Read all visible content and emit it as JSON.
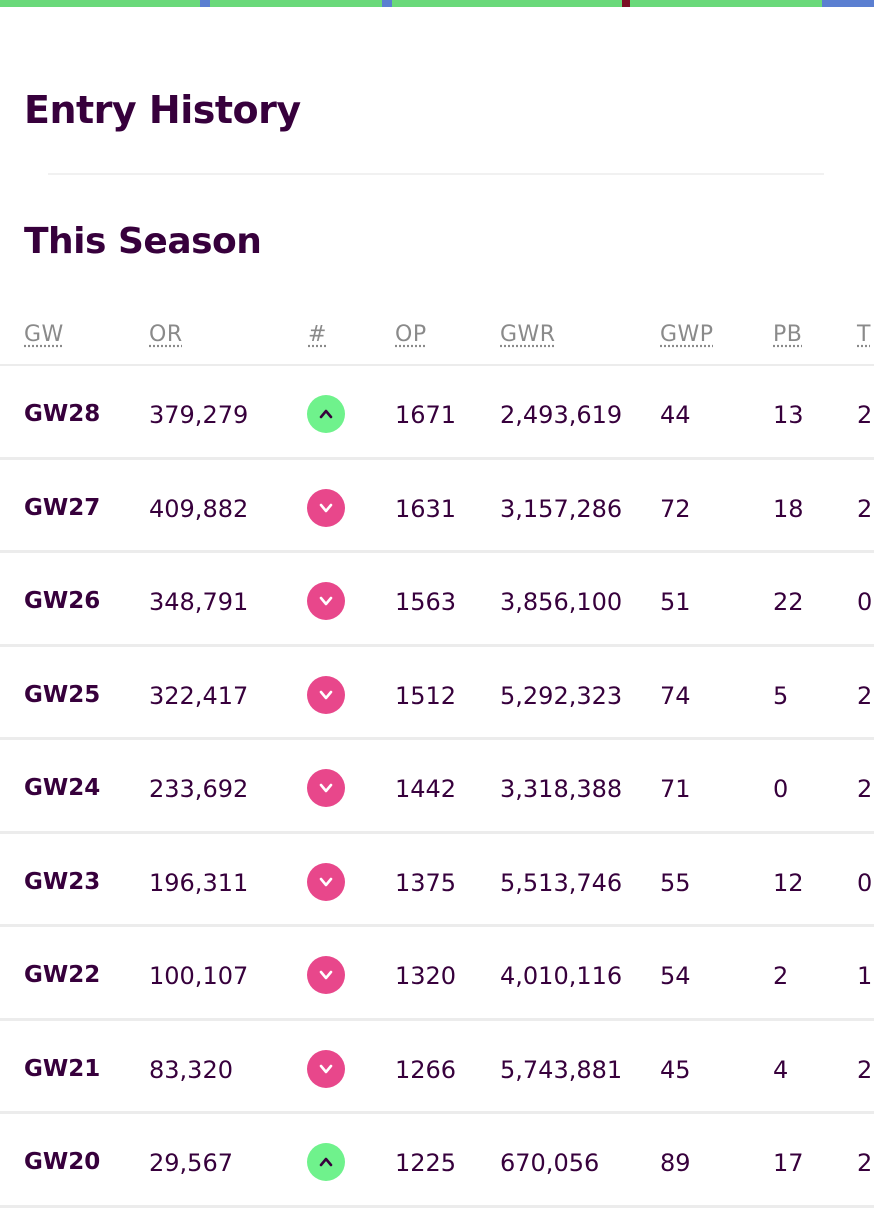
{
  "colors": {
    "primary": "#37003c",
    "rank_up": "#6ff28c",
    "rank_down": "#e8478b",
    "strip_green": "#6ad97a",
    "strip_blue": "#5b7fd1",
    "strip_maroon": "#7a0f24"
  },
  "page": {
    "title": "Entry History"
  },
  "season": {
    "title": "This Season",
    "columns": [
      "GW",
      "OR",
      "#",
      "OP",
      "GWR",
      "GWP",
      "PB",
      "T"
    ],
    "rows": [
      {
        "gw": "GW28",
        "or": "379,279",
        "movement": "up",
        "op": "1671",
        "gwr": "2,493,619",
        "gwp": "44",
        "pb": "13",
        "t": "2"
      },
      {
        "gw": "GW27",
        "or": "409,882",
        "movement": "down",
        "op": "1631",
        "gwr": "3,157,286",
        "gwp": "72",
        "pb": "18",
        "t": "2"
      },
      {
        "gw": "GW26",
        "or": "348,791",
        "movement": "down",
        "op": "1563",
        "gwr": "3,856,100",
        "gwp": "51",
        "pb": "22",
        "t": "0"
      },
      {
        "gw": "GW25",
        "or": "322,417",
        "movement": "down",
        "op": "1512",
        "gwr": "5,292,323",
        "gwp": "74",
        "pb": "5",
        "t": "2"
      },
      {
        "gw": "GW24",
        "or": "233,692",
        "movement": "down",
        "op": "1442",
        "gwr": "3,318,388",
        "gwp": "71",
        "pb": "0",
        "t": "2"
      },
      {
        "gw": "GW23",
        "or": "196,311",
        "movement": "down",
        "op": "1375",
        "gwr": "5,513,746",
        "gwp": "55",
        "pb": "12",
        "t": "0"
      },
      {
        "gw": "GW22",
        "or": "100,107",
        "movement": "down",
        "op": "1320",
        "gwr": "4,010,116",
        "gwp": "54",
        "pb": "2",
        "t": "1"
      },
      {
        "gw": "GW21",
        "or": "83,320",
        "movement": "down",
        "op": "1266",
        "gwr": "5,743,881",
        "gwp": "45",
        "pb": "4",
        "t": "2"
      },
      {
        "gw": "GW20",
        "or": "29,567",
        "movement": "up",
        "op": "1225",
        "gwr": "670,056",
        "gwp": "89",
        "pb": "17",
        "t": "2"
      }
    ]
  }
}
